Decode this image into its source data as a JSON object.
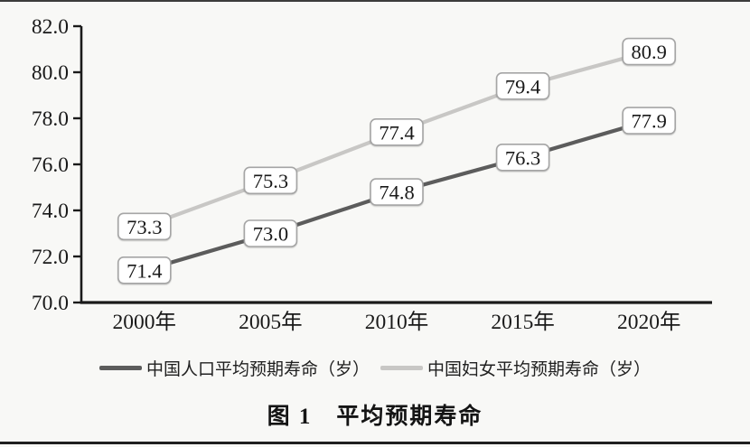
{
  "figure": {
    "caption": "图 1　平均预期寿命"
  },
  "chart_data": {
    "type": "line",
    "title": "图 1　平均预期寿命",
    "categories": [
      "2000年",
      "2005年",
      "2010年",
      "2015年",
      "2020年"
    ],
    "series": [
      {
        "name": "中国人口平均预期寿命（岁）",
        "values": [
          71.4,
          73.0,
          74.8,
          76.3,
          77.9
        ],
        "labels": [
          "71.4",
          "73.0",
          "74.8",
          "76.3",
          "77.9"
        ],
        "color": "#5c5c5c"
      },
      {
        "name": "中国妇女平均预期寿命（岁）",
        "values": [
          73.3,
          75.3,
          77.4,
          79.4,
          80.9
        ],
        "labels": [
          "73.3",
          "75.3",
          "77.4",
          "79.4",
          "80.9"
        ],
        "color": "#c8c7c5"
      }
    ],
    "xlabel": "",
    "ylabel": "",
    "ylim": [
      70.0,
      82.0
    ],
    "ytick_step": 2.0,
    "ytick_labels": [
      "70.0",
      "72.0",
      "74.0",
      "76.0",
      "78.0",
      "80.0",
      "82.0"
    ],
    "grid": false,
    "legend_position": "bottom",
    "data_labels": true,
    "axis_color": "#1a1a1a",
    "label_box": {
      "fill": "#ffffff",
      "stroke": "#a5a5a5"
    }
  }
}
